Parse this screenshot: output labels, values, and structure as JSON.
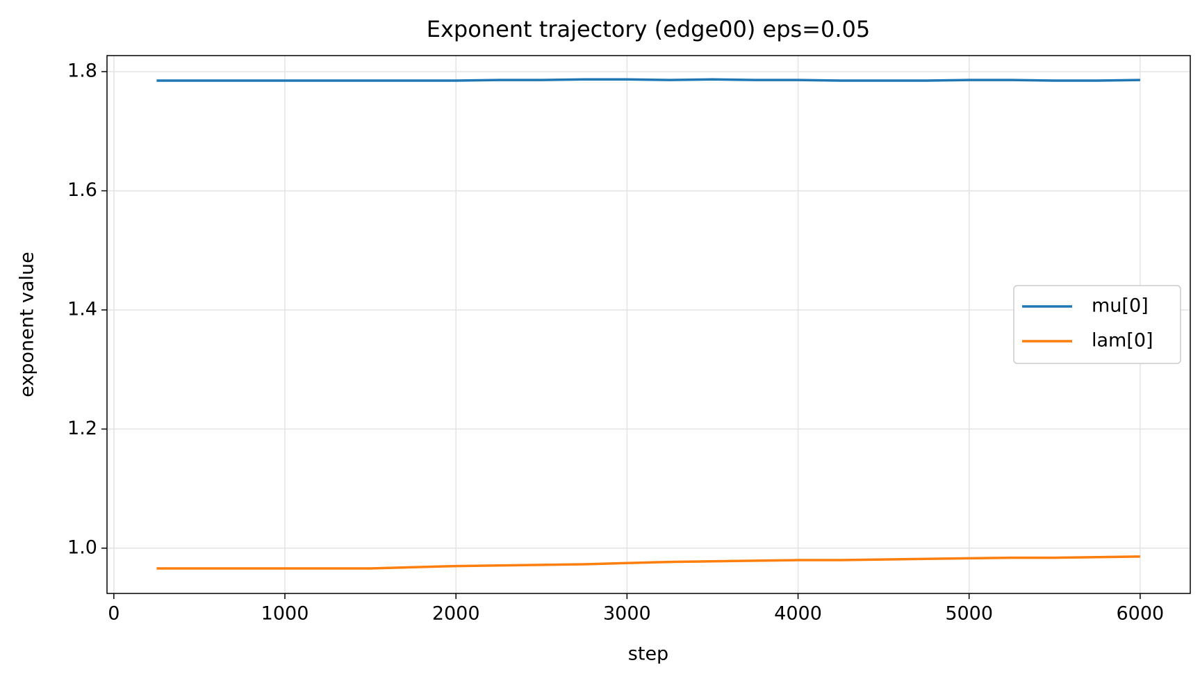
{
  "chart_data": {
    "type": "line",
    "title": "Exponent trajectory (edge00) eps=0.05",
    "x_label": "step",
    "y_label": "exponent value",
    "x": [
      250,
      500,
      750,
      1000,
      1250,
      1500,
      1750,
      2000,
      2250,
      2500,
      2750,
      3000,
      3250,
      3500,
      3750,
      4000,
      4250,
      4500,
      4750,
      5000,
      5250,
      5500,
      5750,
      6000
    ],
    "series": [
      {
        "name": "mu[0]",
        "color": "#1f77b4",
        "values": [
          1.785,
          1.785,
          1.785,
          1.785,
          1.785,
          1.785,
          1.785,
          1.785,
          1.786,
          1.786,
          1.787,
          1.787,
          1.786,
          1.787,
          1.786,
          1.786,
          1.785,
          1.785,
          1.785,
          1.786,
          1.786,
          1.785,
          1.785,
          1.786
        ]
      },
      {
        "name": "lam[0]",
        "color": "#ff7f0e",
        "values": [
          0.966,
          0.966,
          0.966,
          0.966,
          0.966,
          0.966,
          0.968,
          0.97,
          0.971,
          0.972,
          0.973,
          0.975,
          0.977,
          0.978,
          0.979,
          0.98,
          0.98,
          0.981,
          0.982,
          0.983,
          0.984,
          0.984,
          0.985,
          0.986
        ]
      }
    ],
    "xlim": [
      -40,
      6293
    ],
    "ylim": [
      0.924,
      1.827
    ],
    "xticks": [
      0,
      1000,
      2000,
      3000,
      4000,
      5000,
      6000
    ],
    "yticks": [
      {
        "value": 1.0,
        "label": "1.0"
      },
      1.2,
      1.4,
      1.6,
      1.8
    ],
    "grid": true,
    "legend": "right"
  }
}
